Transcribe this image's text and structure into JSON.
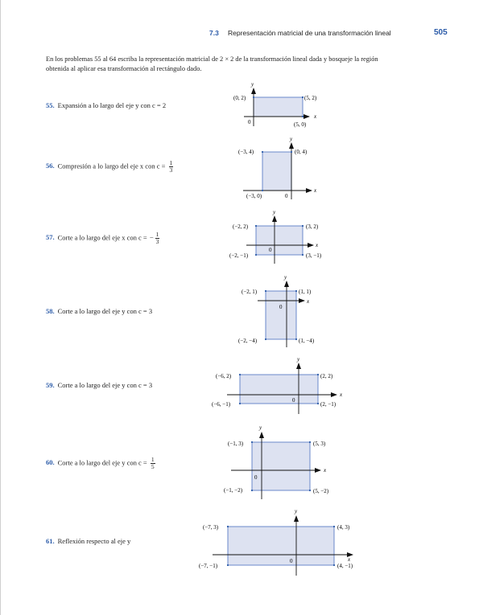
{
  "header": {
    "section": "7.3",
    "title": "Representación matricial de una transformación lineal",
    "page": "505"
  },
  "intro": "En los problemas 55 al 64 escriba la representación matricial de 2 × 2 de la transformación lineal dada y bosqueje la región obtenida al aplicar esa transformación al rectángulo dado.",
  "problems": [
    {
      "number": "55.",
      "text": "Expansión a lo largo del eje y con c = 2"
    },
    {
      "number": "56.",
      "text": "Compresión a lo largo del eje x con c = ",
      "frac": {
        "num": "1",
        "den": "3"
      }
    },
    {
      "number": "57.",
      "text": "Corte a lo largo del eje x con c = ",
      "sign": "−",
      "frac": {
        "num": "1",
        "den": "3"
      }
    },
    {
      "number": "58.",
      "text": "Corte a lo largo del eje y con c = 3"
    },
    {
      "number": "59.",
      "text": "Corte a lo largo del eje y con c = 3"
    },
    {
      "number": "60.",
      "text": "Corte a lo largo del eje y con c = ",
      "frac": {
        "num": "1",
        "den": "5"
      }
    },
    {
      "number": "61.",
      "text": "Reflexión respecto al eje y"
    }
  ],
  "figures": [
    {
      "rect": [
        [
          0,
          0
        ],
        [
          5,
          2
        ]
      ],
      "labels": [
        "(0, 2)",
        "(5, 2)",
        "0",
        "(5, 0)"
      ],
      "axis_x": "x",
      "axis_y": "y"
    },
    {
      "rect": [
        [
          -3,
          0
        ],
        [
          0,
          4
        ]
      ],
      "labels": [
        "(−3, 4)",
        "(0, 4)",
        "(−3, 0)",
        "0"
      ],
      "axis_x": "x",
      "axis_y": "y"
    },
    {
      "rect": [
        [
          -2,
          -1
        ],
        [
          3,
          2
        ]
      ],
      "labels": [
        "(−2, 2)",
        "(3, 2)",
        "(−2, −1)",
        "(3, −1)",
        "0"
      ],
      "axis_x": "x",
      "axis_y": "y"
    },
    {
      "rect": [
        [
          -2,
          -4
        ],
        [
          1,
          1
        ]
      ],
      "labels": [
        "(−2, 1)",
        "(1, 1)",
        "(−2, −4)",
        "(1, −4)",
        "0"
      ],
      "axis_x": "x",
      "axis_y": "y"
    },
    {
      "rect": [
        [
          -6,
          -1
        ],
        [
          2,
          2
        ]
      ],
      "labels": [
        "(−6, 2)",
        "(2, 2)",
        "(−6, −1)",
        "(2, −1)",
        "0"
      ],
      "axis_x": "x",
      "axis_y": "y"
    },
    {
      "rect": [
        [
          -1,
          -2
        ],
        [
          5,
          3
        ]
      ],
      "labels": [
        "(−1, 3)",
        "(5, 3)",
        "(−1, −2)",
        "(5, −2)",
        "0"
      ],
      "axis_x": "x",
      "axis_y": "y"
    },
    {
      "rect": [
        [
          -7,
          -1
        ],
        [
          4,
          3
        ]
      ],
      "labels": [
        "(−7, 3)",
        "(4, 3)",
        "(−7, −1)",
        "(4, −1)",
        "0"
      ],
      "axis_x": "x",
      "axis_y": "y"
    }
  ],
  "colors": {
    "accent": "#2a5aa8",
    "fill": "#dde2f1",
    "stroke": "#4a6fc0"
  }
}
